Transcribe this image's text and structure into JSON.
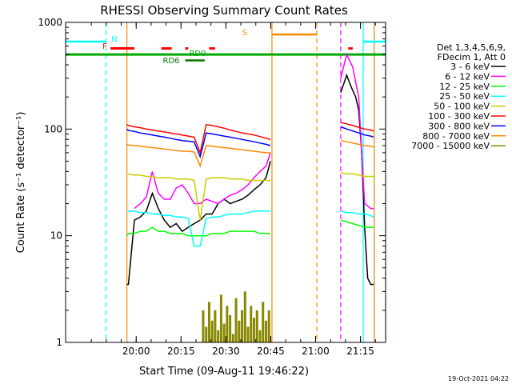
{
  "chart_data": {
    "type": "line",
    "title": "RHESSI Observing Summary Count Rates",
    "xlabel": "Start Time (09-Aug-11 19:46:22)",
    "ylabel": "Count Rate (s⁻¹ detector⁻¹)",
    "yscale": "log",
    "ylim": [
      1,
      1000
    ],
    "xlim_minutes_after_start": [
      -10,
      97
    ],
    "x_ticks": [
      {
        "label": "20:00",
        "minute": 13.6
      },
      {
        "label": "20:15",
        "minute": 28.6
      },
      {
        "label": "20:30",
        "minute": 43.6
      },
      {
        "label": "20:45",
        "minute": 58.6
      },
      {
        "label": "21:00",
        "minute": 73.6
      },
      {
        "label": "21:15",
        "minute": 88.6
      }
    ],
    "y_ticks": [
      {
        "label": "1",
        "value": 1
      },
      {
        "label": "10",
        "value": 10
      },
      {
        "label": "100",
        "value": 100
      },
      {
        "label": "1000",
        "value": 1000
      }
    ],
    "legend_header": [
      "Det 1,3,4,5,6,9,",
      "FDecim 1, Att 0"
    ],
    "legend_position": "right",
    "series": [
      {
        "name": "3 - 6 keV",
        "color": "#000000",
        "x": [
          10.5,
          11,
          13,
          15,
          17,
          19,
          21,
          23,
          25,
          27,
          29,
          31,
          33,
          35,
          37,
          39,
          41,
          43,
          45,
          47,
          49,
          51,
          53,
          55,
          57,
          58.5,
          82,
          84,
          85,
          86,
          87,
          88,
          89,
          90,
          91,
          92,
          93
        ],
        "y": [
          3.5,
          3.5,
          14,
          15,
          17,
          25,
          18,
          14,
          12,
          13,
          11,
          12,
          13,
          14,
          16,
          16,
          20,
          22,
          20,
          21,
          22,
          24,
          27,
          30,
          35,
          50,
          220,
          320,
          270,
          230,
          200,
          150,
          60,
          12,
          4,
          3.5,
          3.5
        ]
      },
      {
        "name": "6 - 12 keV",
        "color": "#ff00ff",
        "x": [
          13,
          15,
          17,
          19,
          21,
          23,
          25,
          27,
          29,
          31,
          33,
          35,
          37,
          39,
          41,
          43,
          45,
          47,
          49,
          51,
          53,
          55,
          57,
          58.5,
          82,
          84,
          86,
          88,
          89,
          90,
          91,
          92,
          93
        ],
        "y": [
          18,
          20,
          23,
          40,
          25,
          22,
          22,
          28,
          30,
          25,
          20,
          20,
          22,
          21,
          20,
          22,
          24,
          25,
          27,
          30,
          35,
          40,
          45,
          60,
          300,
          500,
          380,
          200,
          60,
          20,
          19,
          18,
          18
        ]
      },
      {
        "name": "12 - 25 keV",
        "color": "#00ff00",
        "x": [
          10.5,
          11,
          13,
          15,
          17,
          19,
          21,
          23,
          25,
          27,
          29,
          31,
          33,
          35,
          37,
          39,
          41,
          43,
          45,
          47,
          49,
          51,
          53,
          55,
          57,
          58.5,
          82,
          84,
          86,
          88,
          90,
          92,
          93
        ],
        "y": [
          10,
          10.5,
          10.5,
          11,
          11,
          12,
          11,
          11,
          10.5,
          10.5,
          10.5,
          10,
          10,
          10,
          10,
          10.5,
          10.5,
          10.5,
          11,
          11,
          11,
          11,
          11,
          10.5,
          10.5,
          10.5,
          14,
          13.5,
          13,
          12.5,
          12,
          12,
          12
        ]
      },
      {
        "name": "25 - 50 keV",
        "color": "#00ffff",
        "x": [
          10.5,
          11,
          13,
          15,
          17,
          19,
          21,
          23,
          25,
          27,
          29,
          31,
          33,
          35,
          37,
          39,
          41,
          43,
          45,
          47,
          49,
          51,
          53,
          55,
          57,
          58.5,
          82,
          84,
          86,
          88,
          90,
          92,
          93
        ],
        "y": [
          17,
          17,
          17,
          16.5,
          16.5,
          16,
          16,
          15.5,
          15.5,
          15,
          15,
          14.5,
          8,
          8,
          14.5,
          15,
          15,
          15.5,
          16,
          16,
          16,
          16.5,
          17,
          17,
          17,
          17,
          17,
          16.5,
          16.5,
          16,
          16,
          15.5,
          15
        ]
      },
      {
        "name": "50 - 100 keV",
        "color": "#cccc00",
        "x": [
          10.5,
          11,
          13,
          15,
          17,
          19,
          21,
          23,
          25,
          27,
          29,
          31,
          33,
          35,
          37,
          39,
          41,
          43,
          45,
          47,
          49,
          51,
          53,
          55,
          57,
          58.5,
          82,
          84,
          86,
          88,
          90,
          92,
          93
        ],
        "y": [
          38,
          38,
          37,
          37,
          36,
          36,
          35,
          35,
          35,
          34,
          34,
          34,
          33,
          14,
          34,
          35,
          35,
          35,
          34,
          34,
          34,
          33,
          33,
          33,
          33,
          33,
          39,
          38,
          38,
          37,
          36,
          36,
          36
        ]
      },
      {
        "name": "100 - 300 keV",
        "color": "#ff0000",
        "x": [
          10.5,
          11,
          13,
          15,
          17,
          19,
          21,
          23,
          25,
          27,
          29,
          31,
          33,
          35,
          37,
          39,
          41,
          43,
          45,
          47,
          49,
          51,
          53,
          55,
          57,
          58.5,
          82,
          84,
          86,
          88,
          90,
          92,
          93
        ],
        "y": [
          110,
          108,
          105,
          103,
          100,
          98,
          96,
          94,
          92,
          90,
          88,
          86,
          84,
          60,
          110,
          108,
          105,
          102,
          98,
          95,
          92,
          90,
          88,
          85,
          82,
          80,
          115,
          112,
          108,
          104,
          100,
          98,
          96
        ]
      },
      {
        "name": "300 - 800 keV",
        "color": "#0000ff",
        "x": [
          10.5,
          11,
          13,
          15,
          17,
          19,
          21,
          23,
          25,
          27,
          29,
          31,
          33,
          35,
          37,
          39,
          41,
          43,
          45,
          47,
          49,
          51,
          53,
          55,
          57,
          58.5,
          82,
          84,
          86,
          88,
          90,
          92,
          93
        ],
        "y": [
          100,
          97,
          95,
          92,
          90,
          88,
          86,
          84,
          82,
          80,
          78,
          77,
          76,
          55,
          92,
          90,
          88,
          86,
          84,
          82,
          80,
          78,
          76,
          74,
          72,
          70,
          105,
          100,
          96,
          92,
          88,
          86,
          84
        ]
      },
      {
        "name": "800 - 7000 keV",
        "color": "#ff8800",
        "x": [
          10.5,
          11,
          13,
          15,
          17,
          19,
          21,
          23,
          25,
          27,
          29,
          31,
          33,
          35,
          37,
          39,
          41,
          43,
          45,
          47,
          49,
          51,
          53,
          55,
          57,
          58.5,
          82,
          84,
          86,
          88,
          90,
          92,
          93
        ],
        "y": [
          72,
          71,
          70,
          69,
          68,
          67,
          66,
          65,
          64,
          63,
          62,
          62,
          61,
          45,
          70,
          69,
          68,
          67,
          66,
          65,
          64,
          63,
          62,
          61,
          60,
          60,
          78,
          76,
          74,
          72,
          70,
          69,
          68
        ]
      },
      {
        "name": "7000 - 15000 keV",
        "color": "#888800",
        "x": [
          36,
          37,
          38,
          39,
          40,
          41,
          42,
          43,
          44,
          45,
          46,
          47,
          48,
          49,
          50,
          51,
          52,
          53,
          54,
          55,
          56,
          57,
          58
        ],
        "y": [
          2.0,
          1.4,
          2.4,
          1.6,
          2.0,
          1.3,
          2.8,
          1.5,
          2.2,
          1.8,
          1.2,
          2.6,
          1.6,
          2.0,
          3.0,
          1.4,
          2.2,
          1.7,
          2.0,
          1.3,
          2.4,
          1.6,
          2.0
        ]
      }
    ],
    "flag_bars": [
      {
        "label": "N",
        "color": "#00ffff",
        "segments": [
          [
            -10,
            3.5
          ],
          [
            89.5,
            97
          ]
        ],
        "level": 660,
        "boundaries": [
          3.5,
          89.5
        ],
        "boundary_style": "dashed"
      },
      {
        "label": "F",
        "color": "#ff0000",
        "segments": [
          [
            5,
            13
          ],
          [
            22,
            25.5
          ],
          [
            30,
            31
          ],
          [
            38,
            40
          ],
          [
            84.5,
            86
          ]
        ],
        "level": 570
      },
      {
        "label": "RD0",
        "color": "#00aa00",
        "segments": [
          [
            -10,
            97
          ]
        ],
        "level": 500
      },
      {
        "label": "RD6",
        "color": "#007700",
        "segments": [
          [
            30,
            36.5
          ]
        ],
        "level": 440
      },
      {
        "label": "S",
        "color": "#ff8800",
        "segments": [
          [
            59,
            74
          ]
        ],
        "level": 770,
        "boundaries": [
          59,
          74
        ],
        "boundary_style": "mixed"
      }
    ],
    "vertical_markers": [
      {
        "minute": 3.5,
        "color": "#00ffff",
        "style": "dashed"
      },
      {
        "minute": 89.5,
        "color": "#00ffff",
        "style": "solid"
      },
      {
        "minute": 93.2,
        "color": "#00ffff",
        "style": "solid"
      },
      {
        "minute": 97.0,
        "color": "#00ffff",
        "style": "dashed"
      },
      {
        "minute": 59.0,
        "color": "#ff8800",
        "style": "solid"
      },
      {
        "minute": 74.0,
        "color": "#ff8800",
        "style": "dashed"
      },
      {
        "minute": 10.5,
        "color": "#ff8800",
        "style": "solid"
      },
      {
        "minute": 93.2,
        "color": "#ff8800",
        "style": "solid"
      },
      {
        "minute": 82.0,
        "color": "#ff00ff",
        "style": "dashed"
      }
    ],
    "timestamp": "19-Oct-2021 04:22"
  }
}
